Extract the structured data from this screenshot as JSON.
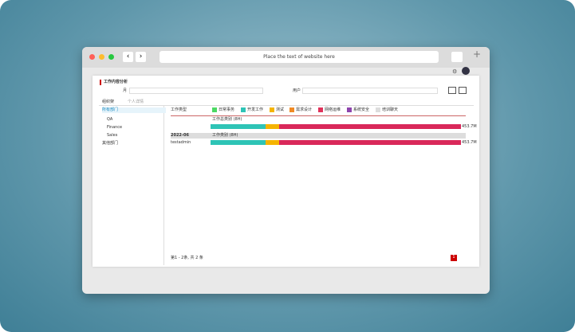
{
  "browser": {
    "address": "Place the text of website here"
  },
  "header": {
    "title": "工作内容分析",
    "filter_month": "月",
    "filter_user": "用户"
  },
  "tabs": [
    "组织架",
    "个人详情"
  ],
  "tree": [
    "所有部门",
    "QA",
    "Finance",
    "Sales",
    "其他部门"
  ],
  "legend": {
    "label": "工作类型",
    "items": [
      {
        "name": "日常事务",
        "color": "#4cd964"
      },
      {
        "name": "开发工作",
        "color": "#2ec4b6"
      },
      {
        "name": "测试",
        "color": "#f5b400"
      },
      {
        "name": "需求设计",
        "color": "#f08a24"
      },
      {
        "name": "网络运维",
        "color": "#e0325a"
      },
      {
        "name": "系统安全",
        "color": "#8e44ad"
      },
      {
        "name": "培训聊天",
        "color": "#dddddd"
      }
    ]
  },
  "segment_colors": [
    "#2ec4b6",
    "#f5b400",
    "#d9285a"
  ],
  "rows": [
    {
      "heading": "工作总类别 (8H)",
      "values": [
        22,
        5.5,
        72.5
      ],
      "total": "453.7M"
    },
    {
      "date": "2022-06",
      "heading": "工作类别 (8H)",
      "name": "testadmin",
      "values": [
        22,
        5.5,
        72.5
      ],
      "total": "453.7M"
    }
  ],
  "footer": {
    "summary": "第1 - 2条, 共 2 条",
    "page": "1"
  }
}
